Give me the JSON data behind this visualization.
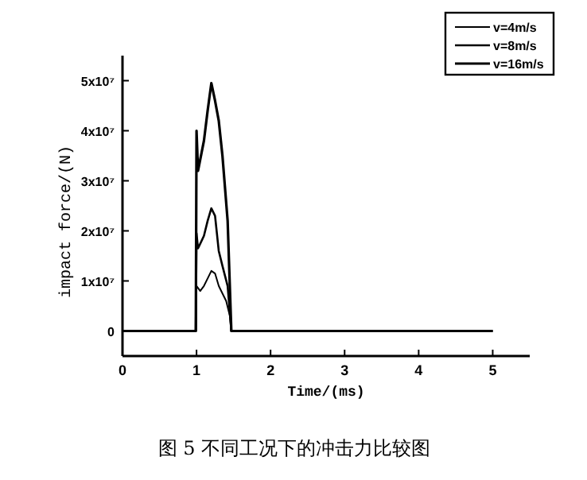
{
  "chart_data": {
    "type": "line",
    "xlabel": "Time/(ms)",
    "ylabel": "impact force/(N)",
    "annotations": [
      "图 5   不同工况下的冲击力比较图"
    ],
    "series": [
      {
        "name": "v=4m/s",
        "color": "#000000",
        "x": [
          0,
          0.99,
          1.0,
          1.05,
          1.1,
          1.15,
          1.2,
          1.25,
          1.3,
          1.35,
          1.4,
          1.45,
          1.47,
          5
        ],
        "values": [
          0,
          0,
          9000000,
          8000000,
          9000000,
          10500000,
          12000000,
          11500000,
          9000000,
          7500000,
          6000000,
          3000000,
          0,
          0
        ]
      },
      {
        "name": "v=8m/s",
        "color": "#000000",
        "x": [
          0,
          0.99,
          1.0,
          1.02,
          1.1,
          1.15,
          1.2,
          1.25,
          1.3,
          1.35,
          1.42,
          1.47,
          5
        ],
        "values": [
          0,
          0,
          19500000,
          16500000,
          19000000,
          22000000,
          24500000,
          23000000,
          16000000,
          13000000,
          9000000,
          0,
          0
        ]
      },
      {
        "name": "v=16m/s",
        "color": "#000000",
        "x": [
          0,
          0.99,
          1.0,
          1.02,
          1.1,
          1.15,
          1.2,
          1.25,
          1.3,
          1.35,
          1.42,
          1.47,
          5
        ],
        "values": [
          0,
          0,
          40000000,
          32000000,
          38000000,
          44000000,
          49500000,
          46000000,
          42000000,
          35000000,
          22000000,
          0,
          0
        ]
      }
    ],
    "xlim": [
      0,
      5.5
    ],
    "xticks": [
      0,
      1,
      2,
      3,
      4,
      5
    ],
    "ylim": [
      -5000000,
      55000000
    ],
    "yticks": [
      0,
      {
        "value": 10000000,
        "label": "1x10⁷"
      },
      {
        "value": 20000000,
        "label": "2x10⁷"
      },
      {
        "value": 30000000,
        "label": "3x10⁷"
      },
      {
        "value": 40000000,
        "label": "4x10⁷"
      },
      {
        "value": 50000000,
        "label": "5x10⁷"
      }
    ],
    "grid": false,
    "legend": "top right",
    "line_style": "solid"
  }
}
